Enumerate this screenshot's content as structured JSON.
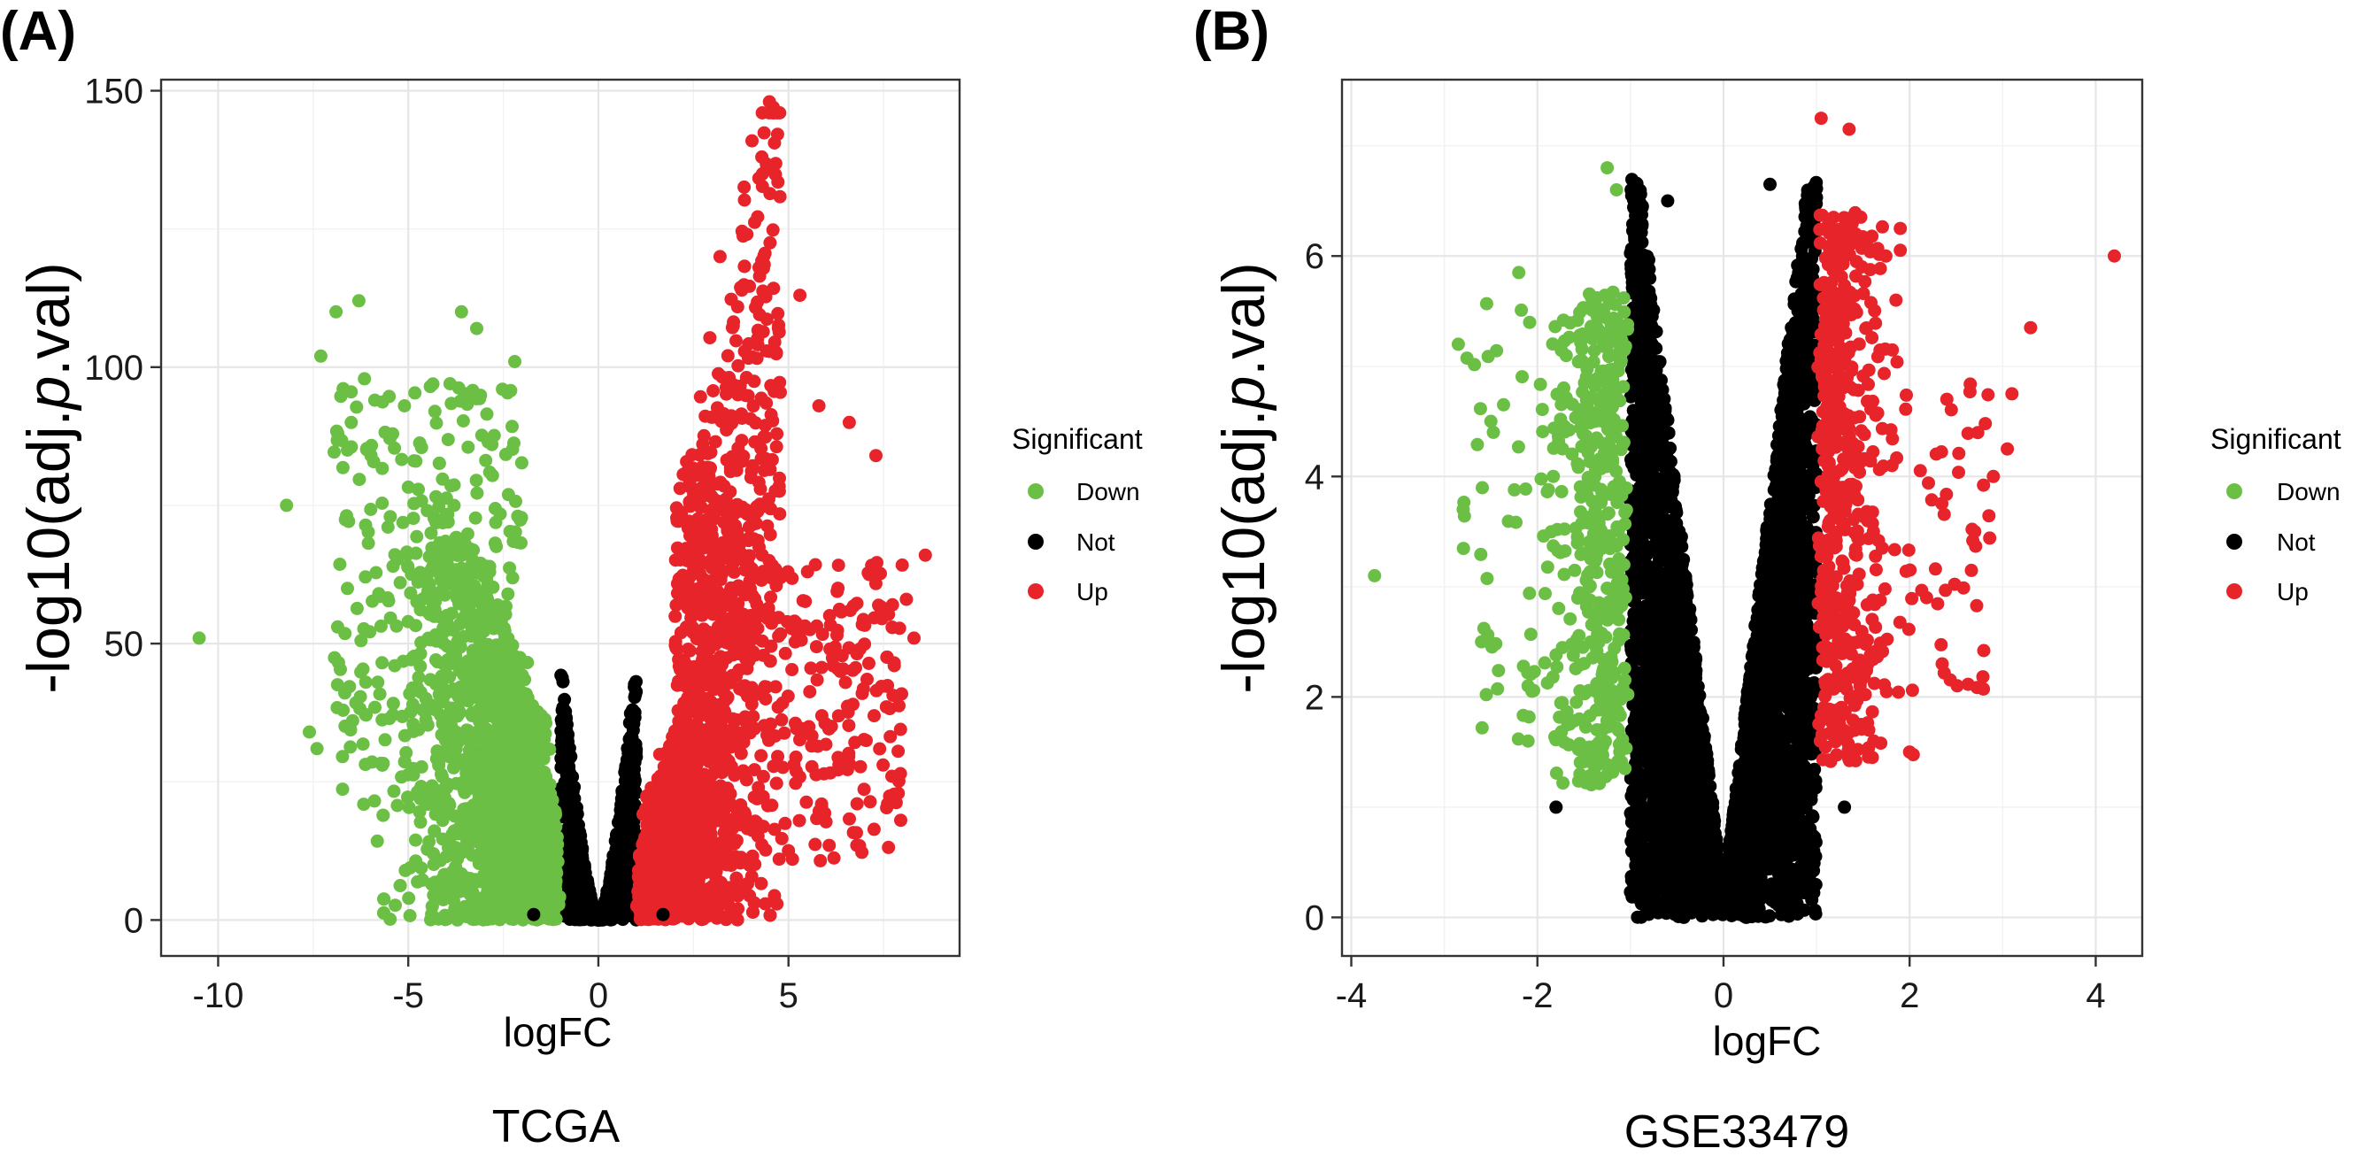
{
  "colors": {
    "down": "#6cbf45",
    "not": "#000000",
    "up": "#e8242b"
  },
  "chart_data": [
    {
      "type": "scatter",
      "panel_label": "(A)",
      "caption": "TCGA",
      "xlabel": "logFC",
      "ylabel_prefix": "-log10(adj.",
      "ylabel_italic": "p",
      "ylabel_suffix": ".val)",
      "xlim": [
        -11.5,
        9.5
      ],
      "ylim": [
        -6.5,
        152
      ],
      "xticks": [
        -10,
        -5,
        0,
        5
      ],
      "xtick_labels": [
        "-10",
        "-5",
        "0",
        "5"
      ],
      "yticks": [
        0,
        50,
        100,
        150
      ],
      "ytick_labels": [
        "0",
        "50",
        "100",
        "150"
      ],
      "legend": {
        "title": "Significant",
        "position": "right",
        "entries": [
          {
            "key": "down",
            "label": "Down"
          },
          {
            "key": "not",
            "label": "Not"
          },
          {
            "key": "up",
            "label": "Up"
          }
        ]
      },
      "series": [
        {
          "name": "Down",
          "key": "down",
          "x": [
            -10.5,
            -8.2,
            -7.3,
            -6.3,
            -6.9,
            -7.6,
            -7.4,
            -6.6,
            -4.3,
            -3.6,
            -3.2,
            -2.2,
            -5.4,
            -4.8,
            -6.5,
            -5.1,
            -4.4,
            -5.8,
            -3.9,
            -2.8
          ],
          "y": [
            51,
            75,
            102,
            112,
            110,
            34,
            31,
            85,
            92,
            110,
            107,
            101,
            64,
            83,
            90,
            93,
            70,
            43,
            97,
            86
          ]
        },
        {
          "name": "Not",
          "key": "not",
          "x": [
            -0.9,
            -0.6,
            -0.3,
            0.0,
            0.3,
            0.6,
            0.9,
            -1.7,
            1.7
          ],
          "y": [
            38,
            18,
            6,
            2,
            6,
            18,
            38,
            1,
            1
          ]
        },
        {
          "name": "Up",
          "key": "up",
          "x": [
            4.5,
            4.6,
            4.3,
            5.3,
            5.8,
            6.6,
            7.3,
            8.6,
            8.3,
            7.5,
            8.1,
            6.3,
            5.5,
            3.2
          ],
          "y": [
            148,
            147,
            138,
            113,
            93,
            90,
            84,
            66,
            51,
            55,
            58,
            60,
            63,
            120
          ]
        }
      ]
    },
    {
      "type": "scatter",
      "panel_label": "(B)",
      "caption": "GSE33479",
      "xlabel": "logFC",
      "ylabel_prefix": "-log10(adj.",
      "ylabel_italic": "p",
      "ylabel_suffix": ".val)",
      "xlim": [
        -4.1,
        4.5
      ],
      "ylim": [
        -0.35,
        7.6
      ],
      "xticks": [
        -4,
        -2,
        0,
        2,
        4
      ],
      "xtick_labels": [
        "-4",
        "-2",
        "0",
        "2",
        "4"
      ],
      "yticks": [
        0,
        2,
        4,
        6
      ],
      "ytick_labels": [
        "0",
        "2",
        "4",
        "6"
      ],
      "legend": {
        "title": "Significant",
        "position": "right",
        "entries": [
          {
            "key": "down",
            "label": "Down"
          },
          {
            "key": "not",
            "label": "Not"
          },
          {
            "key": "up",
            "label": "Up"
          }
        ]
      },
      "series": [
        {
          "name": "Down",
          "key": "down",
          "x": [
            -3.75,
            -2.85,
            -2.2,
            -2.1,
            -1.25,
            -1.15,
            -2.5,
            -2.6,
            -2.1,
            -1.55
          ],
          "y": [
            3.1,
            5.2,
            5.85,
            1.6,
            6.8,
            6.6,
            4.5,
            2.5,
            2.1,
            1.8
          ],
          "z_note": ""
        },
        {
          "name": "Not",
          "key": "not",
          "x": [
            -1.8,
            -0.6,
            0.5,
            1.3,
            -0.8,
            0.8,
            0.0
          ],
          "y": [
            1.0,
            6.5,
            6.65,
            1.0,
            5.5,
            5.5,
            0.1
          ]
        },
        {
          "name": "Up",
          "key": "up",
          "x": [
            4.2,
            3.3,
            3.1,
            2.9,
            2.7,
            2.0,
            1.05,
            1.35,
            2.4,
            3.05,
            2.35,
            1.9
          ],
          "y": [
            6.0,
            5.35,
            4.75,
            4.0,
            3.5,
            1.5,
            7.25,
            7.15,
            4.7,
            4.25,
            2.3,
            6.25
          ]
        }
      ]
    }
  ]
}
